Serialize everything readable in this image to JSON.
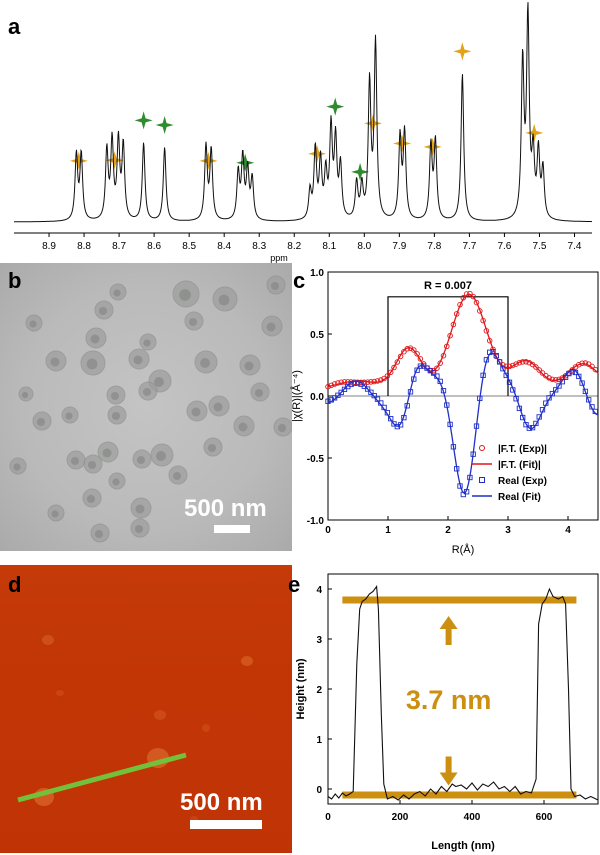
{
  "panels": {
    "a": "a",
    "b": "b",
    "c": "c",
    "d": "d",
    "e": "e"
  },
  "chart_data": [
    {
      "panel": "a",
      "type": "line",
      "title": "",
      "xlabel": "ppm",
      "ylabel": "",
      "xlim": [
        9.0,
        7.35
      ],
      "x_ticks": [
        "8.9",
        "8.8",
        "8.7",
        "8.6",
        "8.5",
        "8.4",
        "8.3",
        "8.2",
        "8.1",
        "8.0",
        "7.9",
        "7.8",
        "7.7",
        "7.6",
        "7.5",
        "7.4"
      ],
      "peaks": [
        {
          "ppm": 8.822,
          "h": 0.32
        },
        {
          "ppm": 8.808,
          "h": 0.32
        },
        {
          "ppm": 8.735,
          "h": 0.34
        },
        {
          "ppm": 8.72,
          "h": 0.38
        },
        {
          "ppm": 8.702,
          "h": 0.38
        },
        {
          "ppm": 8.688,
          "h": 0.36
        },
        {
          "ppm": 8.63,
          "h": 0.38
        },
        {
          "ppm": 8.57,
          "h": 0.36
        },
        {
          "ppm": 8.452,
          "h": 0.36
        },
        {
          "ppm": 8.437,
          "h": 0.34
        },
        {
          "ppm": 8.36,
          "h": 0.23
        },
        {
          "ppm": 8.347,
          "h": 0.3
        },
        {
          "ppm": 8.333,
          "h": 0.24
        },
        {
          "ppm": 8.32,
          "h": 0.2
        },
        {
          "ppm": 8.155,
          "h": 0.14
        },
        {
          "ppm": 8.14,
          "h": 0.34
        },
        {
          "ppm": 8.125,
          "h": 0.28
        },
        {
          "ppm": 8.11,
          "h": 0.22
        },
        {
          "ppm": 8.095,
          "h": 0.44
        },
        {
          "ppm": 8.082,
          "h": 0.38
        },
        {
          "ppm": 8.068,
          "h": 0.26
        },
        {
          "ppm": 8.022,
          "h": 0.18
        },
        {
          "ppm": 8.007,
          "h": 0.16
        },
        {
          "ppm": 7.985,
          "h": 0.66
        },
        {
          "ppm": 7.968,
          "h": 0.86
        },
        {
          "ppm": 7.898,
          "h": 0.4
        },
        {
          "ppm": 7.885,
          "h": 0.42
        },
        {
          "ppm": 7.81,
          "h": 0.36
        },
        {
          "ppm": 7.797,
          "h": 0.38
        },
        {
          "ppm": 7.72,
          "h": 0.72
        },
        {
          "ppm": 7.548,
          "h": 0.76
        },
        {
          "ppm": 7.533,
          "h": 0.98
        },
        {
          "ppm": 7.518,
          "h": 0.3
        },
        {
          "ppm": 7.503,
          "h": 0.32
        },
        {
          "ppm": 7.49,
          "h": 0.24
        }
      ],
      "markers": [
        {
          "ppm": 8.815,
          "color": "orange"
        },
        {
          "ppm": 8.713,
          "color": "orange"
        },
        {
          "ppm": 8.63,
          "color": "green"
        },
        {
          "ppm": 8.57,
          "color": "green"
        },
        {
          "ppm": 8.445,
          "color": "orange"
        },
        {
          "ppm": 8.34,
          "color": "green"
        },
        {
          "ppm": 8.135,
          "color": "orange"
        },
        {
          "ppm": 8.083,
          "color": "green"
        },
        {
          "ppm": 8.012,
          "color": "green"
        },
        {
          "ppm": 7.975,
          "color": "orange"
        },
        {
          "ppm": 7.892,
          "color": "orange"
        },
        {
          "ppm": 7.805,
          "color": "orange"
        },
        {
          "ppm": 7.72,
          "color": "orange"
        },
        {
          "ppm": 7.515,
          "color": "orange"
        }
      ]
    },
    {
      "panel": "c",
      "type": "line",
      "xlabel": "R(Å)",
      "ylabel": "|χ(R)|(Å⁻⁴)",
      "xlim": [
        0,
        4.5
      ],
      "ylim": [
        -1.0,
        1.0
      ],
      "x_ticks": [
        "0",
        "1",
        "2",
        "3",
        "4"
      ],
      "y_ticks": [
        "1.0",
        "0.5",
        "0.0",
        "-0.5",
        "-1.0"
      ],
      "annotation": "R = 0.007",
      "fit_window": [
        1.0,
        3.0
      ],
      "legend": [
        "|F.T. (Exp)|",
        "|F.T. (Fit)|",
        "Real (Exp)",
        "Real (Fit)"
      ],
      "series_colors": {
        "ft": "#e0161a",
        "real": "#1f2fc9"
      }
    },
    {
      "panel": "e",
      "type": "line",
      "xlabel": "Length (nm)",
      "ylabel": "Height (nm)",
      "xlim": [
        0,
        750
      ],
      "ylim": [
        -0.3,
        4.3
      ],
      "x_ticks": [
        "0",
        "200",
        "400",
        "600"
      ],
      "y_ticks": [
        "0",
        "1",
        "2",
        "3",
        "4"
      ],
      "annotation": "3.7 nm",
      "upper_level": 3.78,
      "lower_level": -0.12,
      "profile": [
        [
          0,
          -0.15
        ],
        [
          10,
          -0.2
        ],
        [
          20,
          -0.1
        ],
        [
          30,
          -0.18
        ],
        [
          40,
          -0.08
        ],
        [
          50,
          -0.14
        ],
        [
          60,
          -0.1
        ],
        [
          70,
          -0.05
        ],
        [
          80,
          2.5
        ],
        [
          88,
          3.6
        ],
        [
          95,
          3.75
        ],
        [
          105,
          3.8
        ],
        [
          115,
          3.9
        ],
        [
          125,
          3.95
        ],
        [
          135,
          4.05
        ],
        [
          140,
          3.6
        ],
        [
          148,
          1.5
        ],
        [
          155,
          0.1
        ],
        [
          165,
          -0.2
        ],
        [
          180,
          -0.15
        ],
        [
          195,
          -0.22
        ],
        [
          210,
          -0.12
        ],
        [
          225,
          -0.2
        ],
        [
          240,
          -0.1
        ],
        [
          255,
          -0.05
        ],
        [
          270,
          -0.14
        ],
        [
          285,
          0.0
        ],
        [
          300,
          -0.1
        ],
        [
          315,
          0.05
        ],
        [
          330,
          -0.05
        ],
        [
          345,
          0.1
        ],
        [
          355,
          0.05
        ],
        [
          370,
          0.08
        ],
        [
          385,
          0.0
        ],
        [
          400,
          0.12
        ],
        [
          415,
          -0.02
        ],
        [
          430,
          0.1
        ],
        [
          445,
          0.05
        ],
        [
          460,
          0.14
        ],
        [
          475,
          0.0
        ],
        [
          490,
          0.05
        ],
        [
          505,
          -0.05
        ],
        [
          520,
          0.05
        ],
        [
          535,
          -0.1
        ],
        [
          550,
          -0.05
        ],
        [
          565,
          -0.08
        ],
        [
          578,
          0.2
        ],
        [
          585,
          3.3
        ],
        [
          595,
          3.7
        ],
        [
          605,
          3.8
        ],
        [
          615,
          4.0
        ],
        [
          625,
          3.85
        ],
        [
          640,
          3.8
        ],
        [
          652,
          3.85
        ],
        [
          660,
          3.7
        ],
        [
          668,
          2.0
        ],
        [
          675,
          0.0
        ],
        [
          685,
          -0.15
        ],
        [
          700,
          -0.12
        ],
        [
          715,
          -0.2
        ],
        [
          730,
          -0.15
        ],
        [
          750,
          -0.22
        ]
      ]
    }
  ],
  "images": {
    "b": {
      "scale_text": "500 nm"
    },
    "d": {
      "scale_text": "500 nm"
    }
  }
}
